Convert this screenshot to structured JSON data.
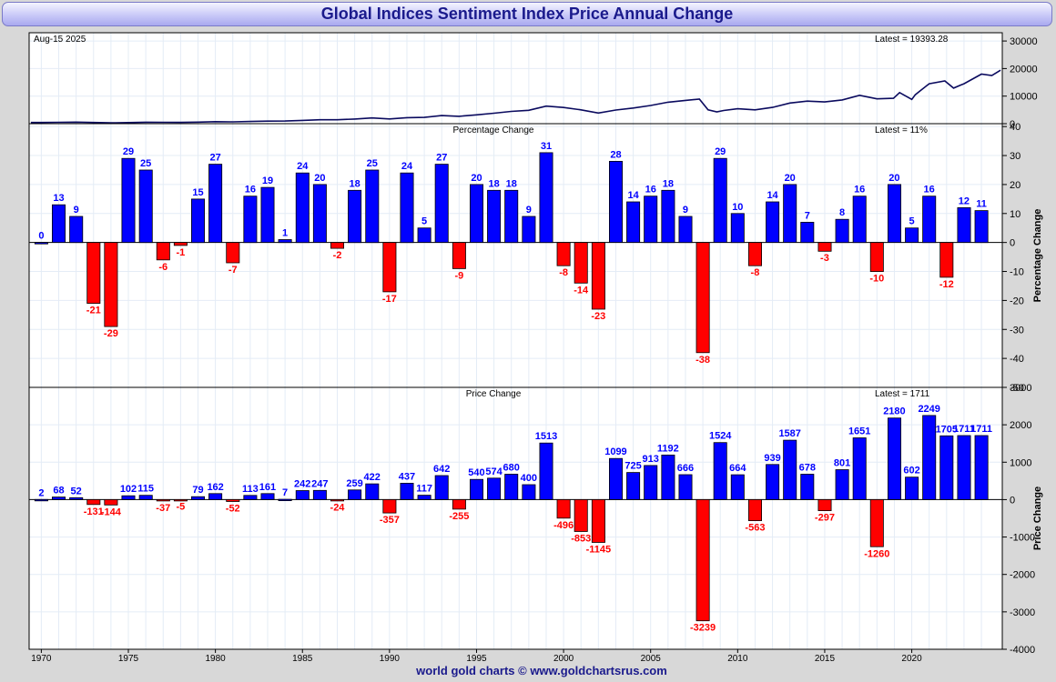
{
  "title": "Global Indices Sentiment Index Price Annual Change",
  "footer": "world gold charts © www.goldchartsrus.com",
  "colors": {
    "positive": "#0000ff",
    "negative": "#ff0000",
    "line": "#0a0a5e",
    "title_text": "#1a1a8c"
  },
  "chart_data": [
    {
      "type": "line",
      "name": "price",
      "date_label": "Aug-15  2025",
      "latest_label": "Latest = 19393.28",
      "ylim": [
        0,
        33000
      ],
      "yticks": [
        0,
        10000,
        20000,
        30000
      ],
      "xlim": [
        1969.3,
        2025.2
      ],
      "grid": true,
      "x": [
        1969.4,
        1970,
        1971,
        1972,
        1973,
        1974,
        1975,
        1976,
        1977,
        1978,
        1979,
        1980,
        1981,
        1982,
        1983,
        1984,
        1985,
        1986,
        1987,
        1988,
        1989,
        1990,
        1991,
        1992,
        1993,
        1994,
        1995,
        1996,
        1997,
        1998,
        1999,
        2000,
        2001,
        2002,
        2003,
        2004,
        2005,
        2006,
        2007,
        2007.8,
        2008.3,
        2008.8,
        2009.2,
        2010,
        2011,
        2012,
        2013,
        2014,
        2015,
        2016,
        2017,
        2018,
        2018.95,
        2019.3,
        2020,
        2020.2,
        2020.5,
        2021,
        2021.9,
        2022.4,
        2022.8,
        2023,
        2024,
        2024.6,
        2025.1
      ],
      "y": [
        420,
        420,
        490,
        560,
        420,
        300,
        400,
        520,
        480,
        470,
        550,
        720,
        660,
        780,
        940,
        950,
        1190,
        1430,
        1410,
        1670,
        2090,
        1730,
        2170,
        2290,
        2930,
        2670,
        3210,
        3780,
        4460,
        4860,
        6370,
        5870,
        5010,
        3860,
        4960,
        5690,
        6600,
        7790,
        8450,
        8900,
        5000,
        4300,
        4800,
        5400,
        5000,
        5900,
        7500,
        8200,
        7900,
        8600,
        10300,
        9000,
        9200,
        11300,
        8800,
        10500,
        12000,
        14500,
        15500,
        12900,
        14000,
        14500,
        18000,
        17500,
        19393
      ]
    },
    {
      "type": "bar",
      "name": "pct",
      "title": "Percentage Change",
      "latest_label": "Latest = 11%",
      "ylabel": "Percentage Change",
      "ylim": [
        -50,
        41
      ],
      "yticks": [
        -50,
        -40,
        -30,
        -20,
        -10,
        0,
        10,
        20,
        30,
        40
      ],
      "categories": [
        1970,
        1971,
        1972,
        1973,
        1974,
        1975,
        1976,
        1977,
        1978,
        1979,
        1980,
        1981,
        1982,
        1983,
        1984,
        1985,
        1986,
        1987,
        1988,
        1989,
        1990,
        1991,
        1992,
        1993,
        1994,
        1995,
        1996,
        1997,
        1998,
        1999,
        2000,
        2001,
        2002,
        2003,
        2004,
        2005,
        2006,
        2007,
        2008,
        2009,
        2010,
        2011,
        2012,
        2013,
        2014,
        2015,
        2016,
        2017,
        2018,
        2019,
        2020,
        2021,
        2022,
        2023,
        2024
      ],
      "values": [
        0,
        13,
        9,
        -21,
        -29,
        29,
        25,
        -6,
        -1,
        15,
        27,
        -7,
        16,
        19,
        1,
        24,
        20,
        -2,
        18,
        25,
        -17,
        24,
        5,
        27,
        -9,
        20,
        18,
        18,
        9,
        31,
        -8,
        -14,
        -23,
        28,
        14,
        16,
        18,
        9,
        -38,
        29,
        10,
        -8,
        14,
        20,
        7,
        -3,
        8,
        16,
        -10,
        20,
        5,
        16,
        -12,
        12,
        11
      ]
    },
    {
      "type": "bar",
      "name": "price_change",
      "title": "Price Change",
      "latest_label": "Latest = 1711",
      "ylabel": "Price Change",
      "xticks": [
        1970,
        1975,
        1980,
        1985,
        1990,
        1995,
        2000,
        2005,
        2010,
        2015,
        2020
      ],
      "ylim": [
        -4000,
        3000
      ],
      "yticks": [
        -4000,
        -3000,
        -2000,
        -1000,
        0,
        1000,
        2000,
        3000
      ],
      "categories": [
        1970,
        1971,
        1972,
        1973,
        1974,
        1975,
        1976,
        1977,
        1978,
        1979,
        1980,
        1981,
        1982,
        1983,
        1984,
        1985,
        1986,
        1987,
        1988,
        1989,
        1990,
        1991,
        1992,
        1993,
        1994,
        1995,
        1996,
        1997,
        1998,
        1999,
        2000,
        2001,
        2002,
        2003,
        2004,
        2005,
        2006,
        2007,
        2008,
        2009,
        2010,
        2011,
        2012,
        2013,
        2014,
        2015,
        2016,
        2017,
        2018,
        2019,
        2020,
        2021,
        2022,
        2023,
        2024
      ],
      "values": [
        2,
        68,
        52,
        -131,
        -144,
        102,
        115,
        -37,
        -5,
        79,
        162,
        -52,
        113,
        161,
        7,
        242,
        247,
        -24,
        259,
        422,
        -357,
        437,
        117,
        642,
        -255,
        540,
        574,
        680,
        400,
        1513,
        -496,
        -853,
        -1145,
        1099,
        725,
        913,
        1192,
        666,
        -3239,
        1524,
        664,
        -563,
        939,
        1587,
        678,
        -297,
        801,
        1651,
        -1260,
        2180,
        602,
        2249,
        1705,
        1711,
        1711
      ]
    }
  ]
}
